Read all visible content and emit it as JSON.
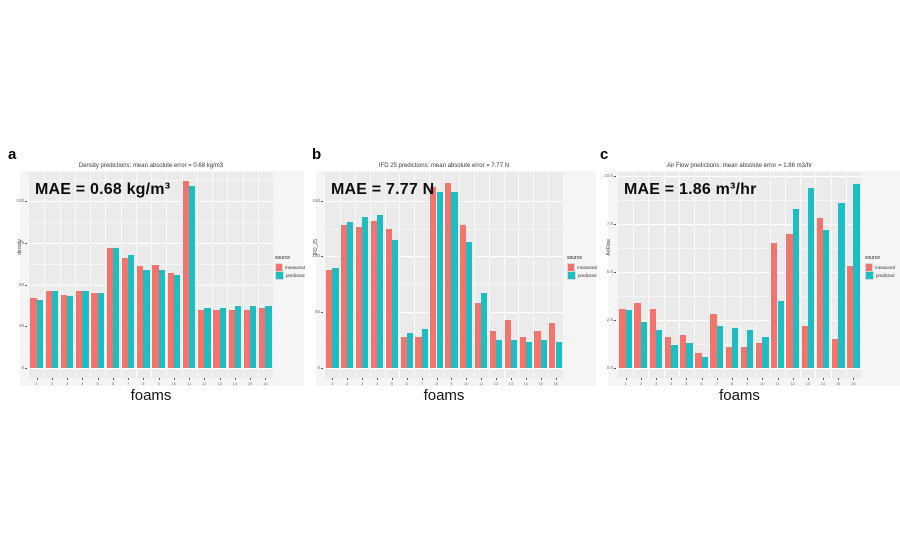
{
  "legend": {
    "title": "source",
    "entries": [
      {
        "label": "measured",
        "color": "#F4736C"
      },
      {
        "label": "predicted",
        "color": "#1CBEC1"
      }
    ]
  },
  "colors": {
    "panel_background": "#EBEBEB",
    "figure_background": "#F5F5F5",
    "gridline": "#FFFFFF",
    "measured": "#F4736C",
    "predicted": "#1CBEC1"
  },
  "chart_data": [
    {
      "type": "bar",
      "panel_label": "a",
      "title": "Density predictions: mean absolute error = 0.68 kg/m3",
      "annotation": "MAE = 0.68 kg/m³",
      "ylabel": "density",
      "xlabel": "foams",
      "ylim": [
        0,
        115
      ],
      "yticks": [
        0,
        25,
        50,
        75,
        100
      ],
      "ytick_labels": [
        "0",
        "25",
        "50",
        "75",
        "100"
      ],
      "categories": [
        "1",
        "2",
        "3",
        "4",
        "5",
        "6",
        "7",
        "8",
        "9",
        "10",
        "11",
        "12",
        "13",
        "14",
        "15",
        "16"
      ],
      "series": [
        {
          "name": "measured",
          "values": [
            42,
            46,
            44,
            46,
            45,
            72,
            66,
            61,
            62,
            57,
            112,
            35,
            35,
            35,
            35,
            36
          ]
        },
        {
          "name": "predicted",
          "values": [
            41,
            46,
            43,
            46,
            45,
            72,
            68,
            59,
            59,
            56,
            109,
            36,
            36,
            37,
            37,
            37
          ]
        }
      ]
    },
    {
      "type": "bar",
      "panel_label": "b",
      "title": "IFD 25 predictions: mean absolute error = 7.77 N",
      "annotation": "MAE = 7.77 N",
      "ylabel": "IFD_25",
      "xlabel": "foams",
      "ylim": [
        0,
        172
      ],
      "yticks": [
        0,
        50,
        100,
        150
      ],
      "ytick_labels": [
        "0",
        "50",
        "100",
        "150"
      ],
      "categories": [
        "1",
        "2",
        "3",
        "4",
        "5",
        "6",
        "7",
        "8",
        "9",
        "10",
        "11",
        "12",
        "13",
        "14",
        "15",
        "16"
      ],
      "series": [
        {
          "name": "measured",
          "values": [
            88,
            128,
            126,
            132,
            125,
            28,
            28,
            162,
            166,
            128,
            58,
            33,
            43,
            28,
            33,
            40
          ]
        },
        {
          "name": "predicted",
          "values": [
            90,
            131,
            135,
            137,
            115,
            31,
            35,
            158,
            158,
            113,
            67,
            25,
            25,
            23,
            25,
            23
          ]
        }
      ]
    },
    {
      "type": "bar",
      "panel_label": "c",
      "title": "Air Flow predictions: mean absolute error = 1.86 m3/hr",
      "annotation": "MAE = 1.86 m³/hr",
      "ylabel": "AirFlow",
      "xlabel": "foams",
      "ylim": [
        0,
        10
      ],
      "yticks": [
        0,
        2.5,
        5,
        7.5,
        10
      ],
      "ytick_labels": [
        "0.0",
        "2.5",
        "5.0",
        "7.5",
        "10.0"
      ],
      "categories": [
        "1",
        "2",
        "3",
        "4",
        "5",
        "6",
        "7",
        "8",
        "9",
        "10",
        "11",
        "12",
        "13",
        "14",
        "15",
        "16"
      ],
      "series": [
        {
          "name": "measured",
          "values": [
            3.1,
            3.4,
            3.1,
            1.6,
            1.7,
            0.8,
            2.8,
            1.1,
            1.1,
            1.3,
            6.5,
            7.0,
            2.2,
            7.8,
            1.5,
            5.3
          ]
        },
        {
          "name": "predicted",
          "values": [
            3.0,
            2.4,
            2.0,
            1.2,
            1.3,
            0.6,
            2.2,
            2.1,
            2.0,
            1.6,
            3.5,
            8.3,
            9.4,
            7.2,
            8.6,
            9.6
          ]
        }
      ]
    }
  ]
}
